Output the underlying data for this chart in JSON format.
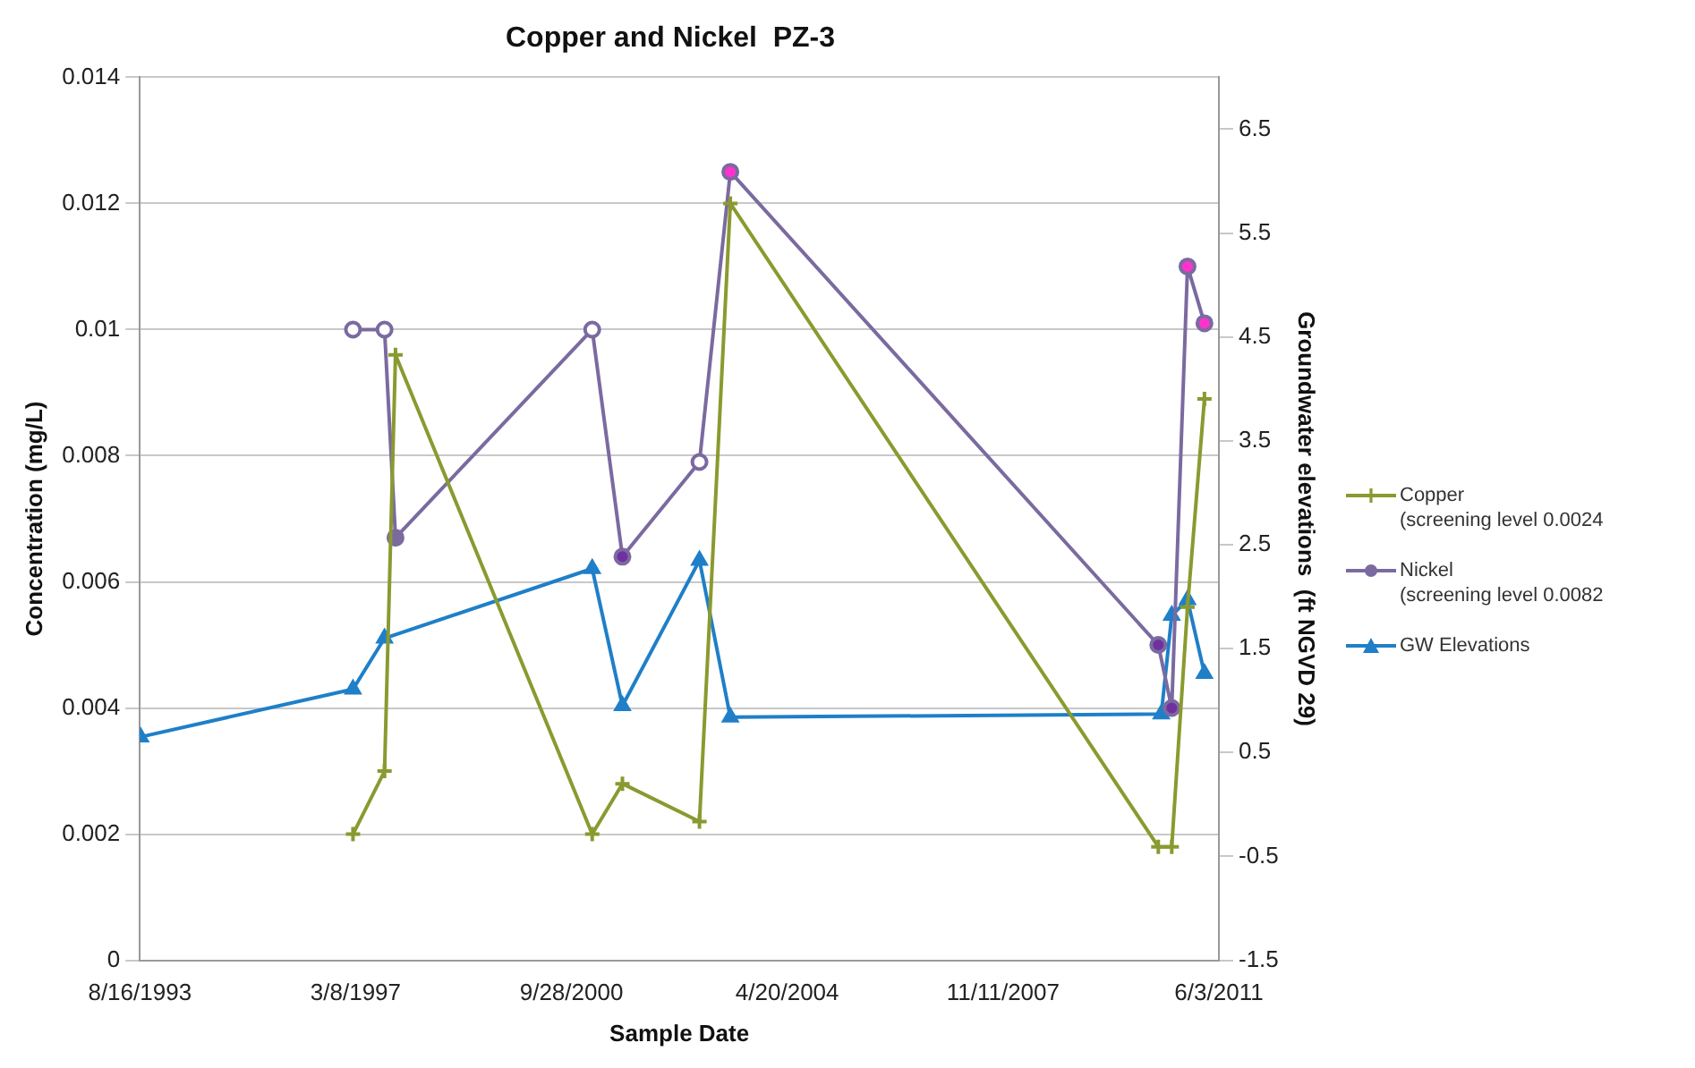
{
  "chart_data": {
    "type": "line",
    "title": "Copper and Nickel  PZ-3",
    "xlabel": "Sample Date",
    "ylabel": "Concentration (mg/L)",
    "y2label": "Groundwater elevations  (ft NGVD 29)",
    "xlim": [
      "1993-08-16",
      "2011-06-03"
    ],
    "xticks": [
      {
        "value": "1993-08-16",
        "label": "8/16/1993"
      },
      {
        "value": "1997-03-08",
        "label": "3/8/1997"
      },
      {
        "value": "2000-09-28",
        "label": "9/28/2000"
      },
      {
        "value": "2004-04-20",
        "label": "4/20/2004"
      },
      {
        "value": "2007-11-11",
        "label": "11/11/2007"
      },
      {
        "value": "2011-06-03",
        "label": "6/3/2011"
      }
    ],
    "ylim": [
      0,
      0.014
    ],
    "yticks": [
      0,
      0.002,
      0.004,
      0.006,
      0.008,
      0.01,
      0.012,
      0.014
    ],
    "y2lim": [
      -1.5,
      7
    ],
    "y2ticks": [
      -1.5,
      -0.5,
      0.5,
      1.5,
      2.5,
      3.5,
      4.5,
      5.5,
      6.5
    ],
    "grid": "y",
    "legend": "right",
    "series": [
      {
        "name": "Copper\n(screening level 0.0024",
        "color": "#8a9a30",
        "marker": "cross",
        "x": [
          "1997-02-20",
          "1997-08-29",
          "1997-11-03",
          "2001-01-31",
          "2001-08-01",
          "2002-11-08",
          "2003-05-13",
          "2010-06-03",
          "2010-08-23",
          "2010-11-26",
          "2011-03-08"
        ],
        "values": [
          0.002,
          0.003,
          0.0096,
          0.002,
          0.0028,
          0.0022,
          0.012,
          0.0018,
          0.0018,
          0.0056,
          0.0089
        ],
        "colors": [
          "#8a9a30",
          "#8a9a30",
          "#ff33cc",
          "#8a9a30",
          "#ff33cc",
          "#8a9a30",
          "#ff33cc",
          "#8a9a30",
          "#8a9a30",
          "#ff33cc",
          "#ff33cc"
        ]
      },
      {
        "name": "Nickel\n(screening level 0.0082",
        "color": "#7b6aa0",
        "marker": "circle",
        "x": [
          "1997-02-20",
          "1997-08-29",
          "1997-11-03",
          "2001-01-31",
          "2001-08-01",
          "2002-11-08",
          "2003-05-13",
          "2010-06-03",
          "2010-08-23",
          "2010-11-26",
          "2011-03-08"
        ],
        "values": [
          0.01,
          0.01,
          0.0067,
          0.01,
          0.0064,
          0.0079,
          0.0125,
          0.005,
          0.004,
          0.011,
          0.0101
        ],
        "colors": [
          "#ffffff",
          "#ffffff",
          "#7b6aa0",
          "#ffffff",
          "#7030a0",
          "#ffffff",
          "#ff33cc",
          "#7030a0",
          "#7030a0",
          "#ff33cc",
          "#ff33cc"
        ]
      },
      {
        "name": "GW Elevations",
        "color": "#1f7fc8",
        "marker": "triangle",
        "axis": "y2",
        "x": [
          "1993-08-20",
          "1997-02-20",
          "1997-08-29",
          "2001-01-31",
          "2001-08-01",
          "2002-11-08",
          "2003-05-13",
          "2010-06-21",
          "2010-08-23",
          "2010-11-26",
          "2011-03-08"
        ],
        "values": [
          0.65,
          1.11,
          1.6,
          2.27,
          0.95,
          2.35,
          0.84,
          0.87,
          1.82,
          1.97,
          1.26
        ]
      }
    ]
  }
}
